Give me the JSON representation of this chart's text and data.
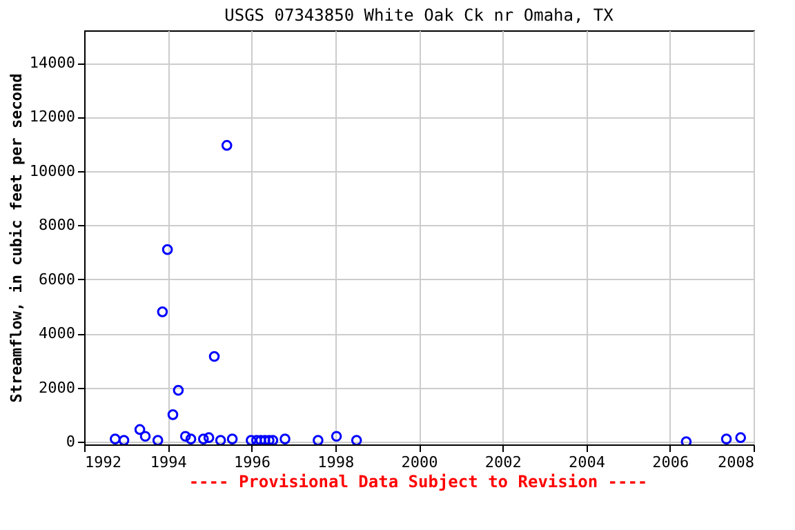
{
  "chart_data": {
    "type": "scatter",
    "title": "USGS 07343850 White Oak Ck nr Omaha, TX",
    "ylabel": "Streamflow, in cubic feet per second",
    "x": [
      1992.74,
      1992.95,
      1993.33,
      1993.46,
      1993.76,
      1993.87,
      1993.99,
      1994.12,
      1994.25,
      1994.42,
      1994.55,
      1994.85,
      1994.98,
      1995.11,
      1995.26,
      1995.41,
      1995.54,
      1995.99,
      1996.12,
      1996.22,
      1996.32,
      1996.42,
      1996.51,
      1996.8,
      1997.59,
      1998.03,
      1998.51,
      2006.39,
      2007.35,
      2007.69
    ],
    "series": [
      {
        "color": "#0000ff",
        "values": [
          100,
          50,
          450,
          200,
          50,
          4800,
          7100,
          1000,
          1900,
          200,
          100,
          100,
          150,
          3150,
          50,
          10950,
          100,
          50,
          50,
          50,
          50,
          50,
          50,
          100,
          50,
          200,
          50,
          0,
          100,
          150
        ]
      }
    ],
    "xlim": [
      1992,
      2008
    ],
    "xticks": [
      1992,
      1994,
      1996,
      1998,
      2000,
      2002,
      2004,
      2006,
      2008
    ],
    "ylim": [
      -100,
      15200
    ],
    "yticks": [
      0,
      2000,
      4000,
      6000,
      8000,
      10000,
      12000,
      14000
    ],
    "grid": true,
    "marker": "circle",
    "annotations": [
      "---- Provisional Data Subject to Revision ----"
    ]
  }
}
